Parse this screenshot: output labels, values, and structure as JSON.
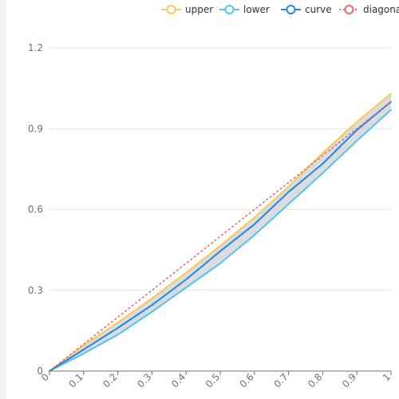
{
  "chart_data": {
    "type": "line",
    "x": [
      0,
      0.1,
      0.2,
      0.3,
      0.4,
      0.5,
      0.6,
      0.7,
      0.8,
      0.9,
      1
    ],
    "x_tick_labels": [
      "0",
      "0.1",
      "0.2",
      "0.3",
      "0.4",
      "0.5",
      "0.6",
      "0.7",
      "0.8",
      "0.9",
      "1"
    ],
    "y_tick_labels": [
      "0",
      "0.3",
      "0.6",
      "0.9",
      "1.2"
    ],
    "xlim": [
      0,
      1
    ],
    "ylim": [
      0,
      1.2
    ],
    "grid": "horizontal",
    "legend_position": "top-right",
    "series": [
      {
        "name": "upper",
        "color": "#fac858",
        "style": "solid",
        "values": [
          0,
          0.095,
          0.18,
          0.27,
          0.365,
          0.465,
          0.57,
          0.685,
          0.81,
          0.925,
          1.03
        ]
      },
      {
        "name": "lower",
        "color": "#4fc3f7",
        "style": "solid",
        "values": [
          0,
          0.065,
          0.135,
          0.22,
          0.31,
          0.4,
          0.505,
          0.62,
          0.735,
          0.855,
          0.97
        ]
      },
      {
        "name": "curve",
        "color": "#1e88e5",
        "style": "solid",
        "values": [
          0,
          0.08,
          0.16,
          0.245,
          0.34,
          0.445,
          0.545,
          0.665,
          0.77,
          0.895,
          1.0
        ]
      },
      {
        "name": "diagona",
        "color": "#ee6666",
        "style": "dotted",
        "values": [
          0,
          0.1,
          0.2,
          0.3,
          0.4,
          0.5,
          0.6,
          0.7,
          0.8,
          0.9,
          1.0
        ]
      }
    ],
    "band": {
      "between": [
        "lower",
        "upper"
      ],
      "color": "#d0d0d0"
    }
  }
}
